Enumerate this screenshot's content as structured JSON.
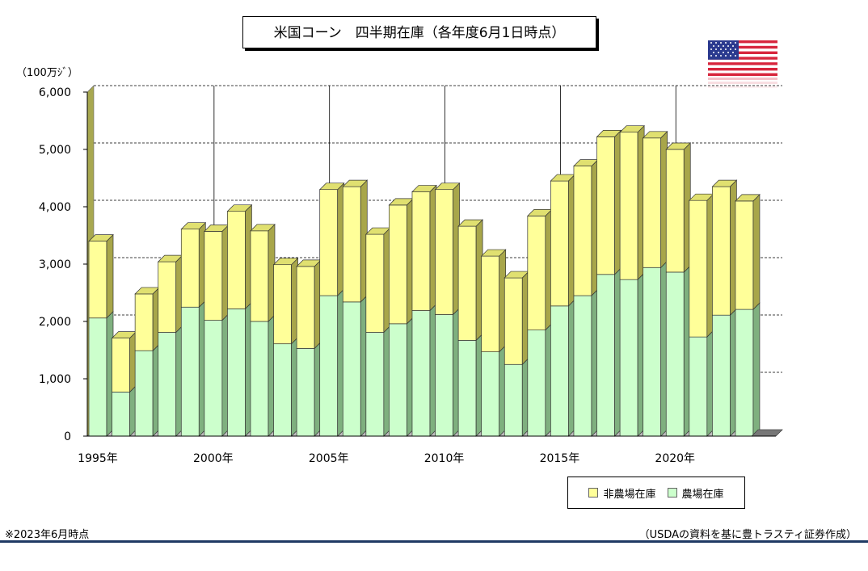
{
  "title": "米国コーン　四半期在庫（各年度6月1日時点）",
  "unit": "（100万ｼﾞ）",
  "note_left": "※2023年6月時点",
  "note_right": "（USDAの資料を基に豊トラスティ証券作成）",
  "colors": {
    "farm": "#ccffcc",
    "nonfarm": "#ffff99",
    "bottom_rule": "#1f3a64"
  },
  "chart_data": {
    "type": "bar",
    "stacked": true,
    "years": [
      1995,
      1996,
      1997,
      1998,
      1999,
      2000,
      2001,
      2002,
      2003,
      2004,
      2005,
      2006,
      2007,
      2008,
      2009,
      2010,
      2011,
      2012,
      2013,
      2014,
      2015,
      2016,
      2017,
      2018,
      2019,
      2020,
      2021,
      2022,
      2023
    ],
    "x_tick_labels": [
      "1995年",
      "2000年",
      "2005年",
      "2010年",
      "2015年",
      "2020年"
    ],
    "y_tick_labels": [
      "0",
      "1,000",
      "2,000",
      "3,000",
      "4,000",
      "5,000",
      "6,000"
    ],
    "ylim": [
      0,
      6000
    ],
    "series": [
      {
        "name": "農場在庫",
        "color": "#ccffcc",
        "values": [
          2060,
          770,
          1490,
          1810,
          2250,
          2020,
          2220,
          2000,
          1610,
          1530,
          2450,
          2340,
          1810,
          1960,
          2190,
          2120,
          1670,
          1470,
          1250,
          1850,
          2270,
          2450,
          2820,
          2730,
          2940,
          2860,
          1730,
          2110,
          2210
        ]
      },
      {
        "name": "非農場在庫",
        "color": "#ffff99",
        "values": [
          1340,
          940,
          990,
          1230,
          1360,
          1550,
          1700,
          1580,
          1380,
          1430,
          1850,
          2010,
          1710,
          2070,
          2070,
          2180,
          1990,
          1670,
          1510,
          1990,
          2180,
          2260,
          2400,
          2570,
          2260,
          2140,
          2380,
          2240,
          1890
        ]
      }
    ],
    "legend": [
      "非農場在庫",
      "農場在庫"
    ],
    "grid": "dashed horizontal + solid vertical",
    "legend_position": "bottom-right"
  }
}
